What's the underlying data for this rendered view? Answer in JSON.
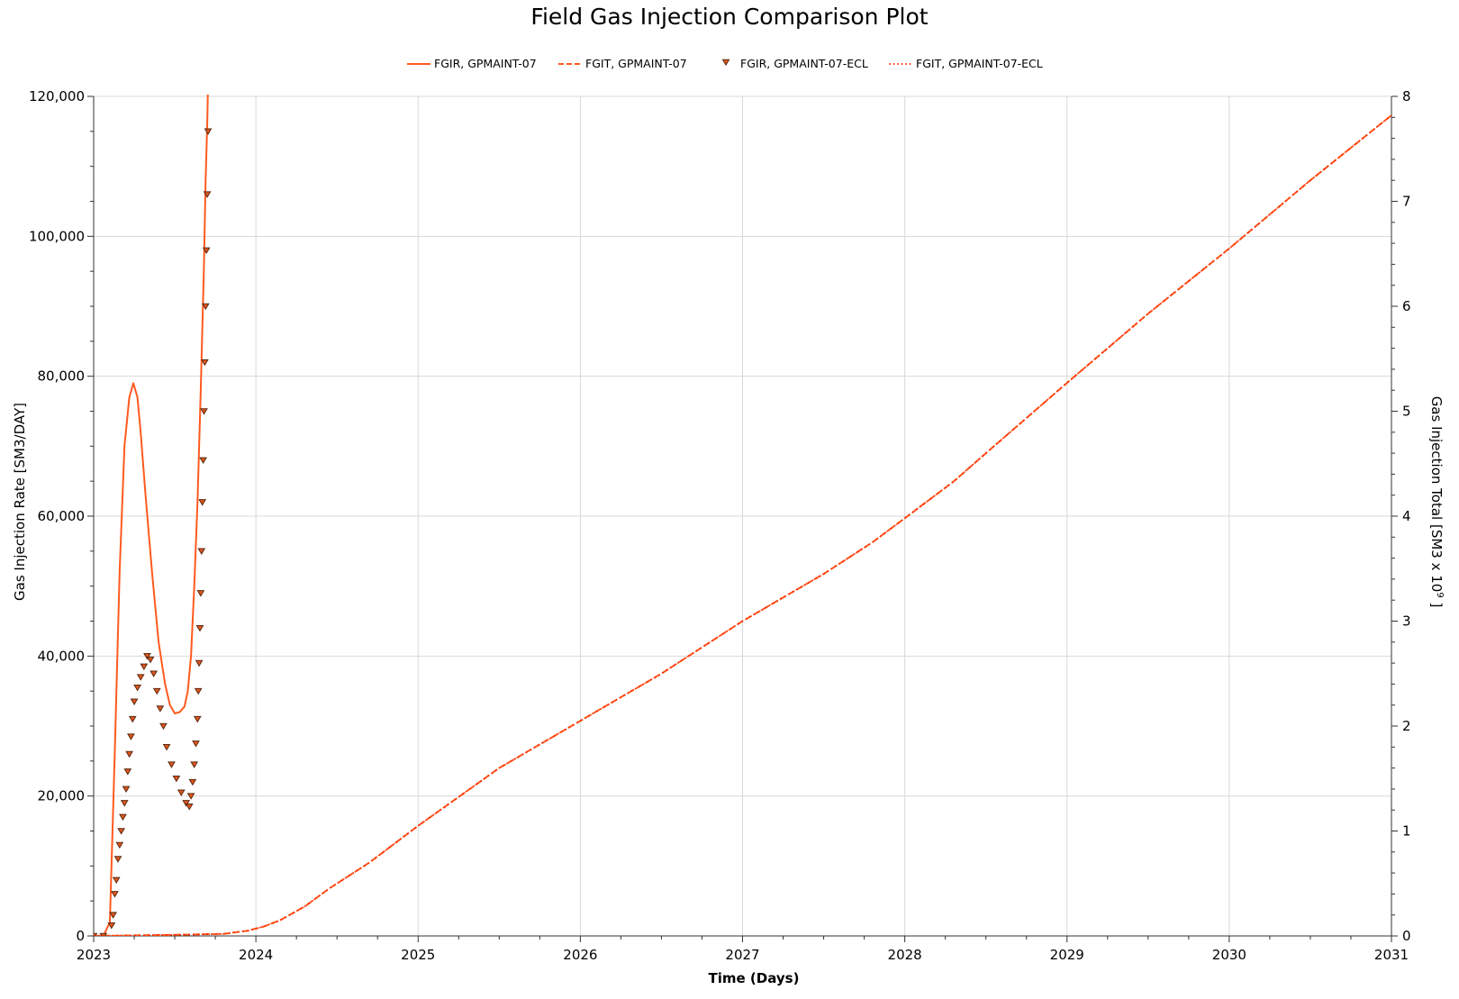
{
  "chart_data": {
    "type": "line",
    "title": "Field Gas Injection Comparison Plot",
    "xlabel": "Time (Days)",
    "ylabel_left": "Gas Injection Rate [SM3/DAY]",
    "ylabel_right_main": "Gas Injection Total [SM3 x 10",
    "ylabel_right_exp": "9",
    "ylabel_right_end": " ]",
    "x_ticks": [
      "2023",
      "2024",
      "2025",
      "2026",
      "2027",
      "2028",
      "2029",
      "2030",
      "2031"
    ],
    "xlim": [
      2023,
      2031
    ],
    "ylim_left": [
      0,
      120000
    ],
    "ylim_right": [
      0,
      8
    ],
    "y_ticks_left": [
      "0",
      "20,000",
      "40,000",
      "60,000",
      "80,000",
      "100,000",
      "120,000"
    ],
    "y_ticks_left_values": [
      0,
      20000,
      40000,
      60000,
      80000,
      100000,
      120000
    ],
    "y_ticks_right": [
      "0",
      "1",
      "2",
      "3",
      "4",
      "5",
      "6",
      "7",
      "8"
    ],
    "y_ticks_right_values": [
      0,
      1,
      2,
      3,
      4,
      5,
      6,
      7,
      8
    ],
    "grid": true,
    "legend_position": "top-center",
    "series": [
      {
        "name": "FGIR, GPMAINT-07",
        "axis": "left",
        "style": "solid",
        "color": "#ff5a1f",
        "x": [
          2023.0,
          2023.06,
          2023.1,
          2023.13,
          2023.16,
          2023.19,
          2023.22,
          2023.245,
          2023.27,
          2023.29,
          2023.32,
          2023.36,
          2023.4,
          2023.44,
          2023.47,
          2023.5,
          2023.53,
          2023.56,
          2023.58,
          2023.6,
          2023.62,
          2023.64,
          2023.66,
          2023.68,
          2023.69,
          2023.7,
          2023.705
        ],
        "y": [
          0,
          0,
          2000,
          26000,
          52000,
          70000,
          77000,
          79000,
          77000,
          72000,
          63000,
          52000,
          42000,
          36000,
          33000,
          31800,
          32000,
          32800,
          35000,
          40000,
          50000,
          62000,
          78000,
          96000,
          108000,
          116000,
          122000
        ]
      },
      {
        "name": "FGIT, GPMAINT-07",
        "axis": "right",
        "style": "dashed",
        "color": "#ff5a1f",
        "x": [
          2023.0,
          2023.5,
          2023.8,
          2023.95,
          2024.05,
          2024.15,
          2024.3,
          2024.45,
          2024.7,
          2025.0,
          2025.5,
          2026.0,
          2026.5,
          2027.0,
          2027.5,
          2027.8,
          2028.0,
          2028.3,
          2028.5,
          2029.0,
          2029.5,
          2030.0,
          2030.5,
          2031.0
        ],
        "y": [
          0,
          0.01,
          0.02,
          0.05,
          0.09,
          0.15,
          0.28,
          0.45,
          0.7,
          1.05,
          1.6,
          2.05,
          2.5,
          3.0,
          3.45,
          3.75,
          3.98,
          4.33,
          4.6,
          5.27,
          5.93,
          6.55,
          7.2,
          7.82
        ]
      },
      {
        "name": "FGIR, GPMAINT-07-ECL",
        "axis": "left",
        "style": "markers",
        "marker": "triangle-down",
        "color": "#8b3a1a",
        "x": [
          2023.0,
          2023.06,
          2023.11,
          2023.12,
          2023.13,
          2023.14,
          2023.15,
          2023.16,
          2023.17,
          2023.18,
          2023.19,
          2023.2,
          2023.21,
          2023.22,
          2023.23,
          2023.24,
          2023.25,
          2023.27,
          2023.29,
          2023.31,
          2023.33,
          2023.35,
          2023.37,
          2023.39,
          2023.41,
          2023.43,
          2023.45,
          2023.48,
          2023.51,
          2023.54,
          2023.57,
          2023.59,
          2023.6,
          2023.61,
          2023.62,
          2023.63,
          2023.64,
          2023.645,
          2023.65,
          2023.655,
          2023.66,
          2023.665,
          2023.67,
          2023.675,
          2023.68,
          2023.685,
          2023.69,
          2023.695,
          2023.7,
          2023.705
        ],
        "y": [
          0,
          0,
          1500,
          3000,
          6000,
          8000,
          11000,
          13000,
          15000,
          17000,
          19000,
          21000,
          23500,
          26000,
          28500,
          31000,
          33500,
          35500,
          37000,
          38500,
          40000,
          39500,
          37500,
          35000,
          32500,
          30000,
          27000,
          24500,
          22500,
          20500,
          19000,
          18500,
          20000,
          22000,
          24500,
          27500,
          31000,
          35000,
          39000,
          44000,
          49000,
          55000,
          62000,
          68000,
          75000,
          82000,
          90000,
          98000,
          106000,
          115000
        ]
      },
      {
        "name": "FGIT, GPMAINT-07-ECL",
        "axis": "right",
        "style": "dotted",
        "color": "#ff2a00",
        "x": [
          2023.0,
          2023.5,
          2023.8,
          2023.95,
          2024.05,
          2024.15,
          2024.3,
          2024.45,
          2024.7,
          2025.0,
          2025.5,
          2026.0,
          2026.5,
          2027.0,
          2027.5,
          2027.8,
          2028.0,
          2028.3,
          2028.5,
          2029.0,
          2029.5,
          2030.0,
          2030.5,
          2031.0
        ],
        "y": [
          0,
          0.01,
          0.02,
          0.05,
          0.09,
          0.15,
          0.28,
          0.45,
          0.7,
          1.05,
          1.6,
          2.05,
          2.5,
          3.0,
          3.45,
          3.75,
          3.98,
          4.33,
          4.6,
          5.27,
          5.93,
          6.55,
          7.2,
          7.82
        ]
      }
    ]
  }
}
